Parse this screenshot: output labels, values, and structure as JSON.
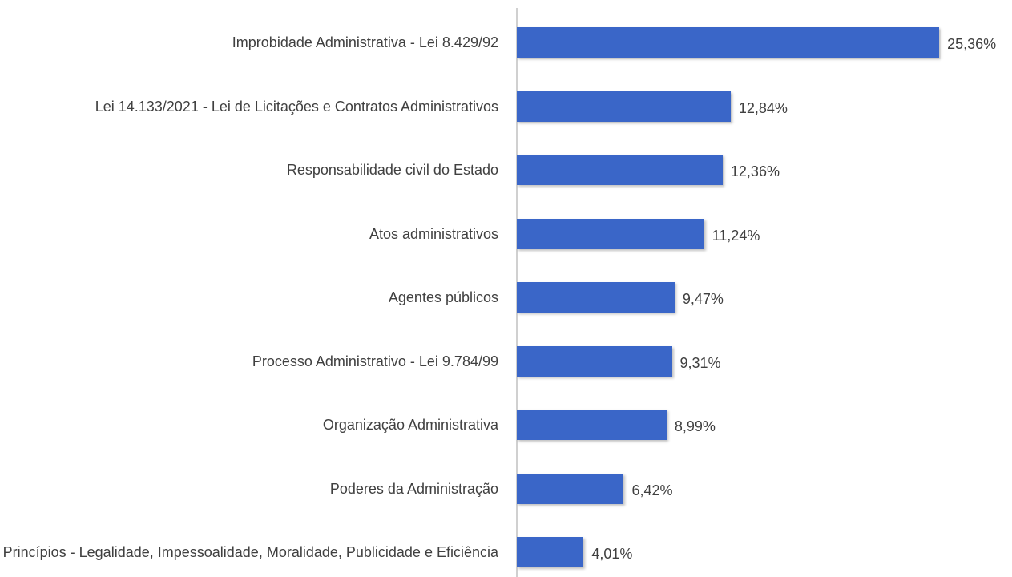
{
  "chart_data": {
    "type": "bar",
    "orientation": "horizontal",
    "categories": [
      "Improbidade Administrativa - Lei 8.429/92",
      "Lei 14.133/2021 - Lei de Licitações e Contratos Administrativos",
      "Responsabilidade civil do Estado",
      "Atos administrativos",
      "Agentes públicos",
      "Processo Administrativo - Lei 9.784/99",
      "Organização Administrativa",
      "Poderes da Administração",
      "Princípios - Legalidade, Impessoalidade, Moralidade, Publicidade e Eficiência"
    ],
    "values": [
      25.36,
      12.84,
      12.36,
      11.24,
      9.47,
      9.31,
      8.99,
      6.42,
      4.01
    ],
    "value_labels": [
      "25,36%",
      "12,84%",
      "12,36%",
      "11,24%",
      "9,47%",
      "9,31%",
      "8,99%",
      "6,42%",
      "4,01%"
    ],
    "color": "#3a66c8",
    "xlim": [
      0,
      28
    ]
  }
}
